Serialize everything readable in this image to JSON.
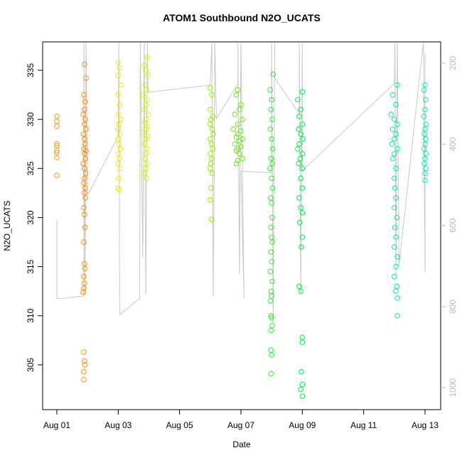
{
  "chart_data": {
    "type": "scatter",
    "title": "ATOM1 Southbound N2O_UCATS",
    "x_label": "Date",
    "y_label": "N2O_UCATS",
    "xlim": [
      0.537,
      13.51
    ],
    "xticks": [
      {
        "value": 1,
        "label": "Aug 01"
      },
      {
        "value": 3,
        "label": "Aug 03"
      },
      {
        "value": 5,
        "label": "Aug 05"
      },
      {
        "value": 7,
        "label": "Aug 07"
      },
      {
        "value": 9,
        "label": "Aug 09"
      },
      {
        "value": 11,
        "label": "Aug 11"
      },
      {
        "value": 13,
        "label": "Aug 13"
      }
    ],
    "ylim": [
      300.44,
      337.89
    ],
    "yticks": [
      305,
      310,
      315,
      320,
      325,
      330,
      335
    ],
    "y2lim": [
      1054,
      147.5
    ],
    "y2ticks": [
      200,
      400,
      600,
      800,
      1000
    ],
    "series": [
      {
        "type": "line",
        "axis": "y2",
        "color": "#c8c8c8",
        "x": [
          1.0,
          1.0,
          1.88,
          1.88,
          1.92,
          1.95,
          2.0,
          3.0,
          3.02,
          3.05,
          3.7,
          3.72,
          3.8,
          3.85,
          3.9,
          3.95,
          3.97,
          6.0,
          6.05,
          6.1,
          6.15,
          6.2,
          6.9,
          6.9,
          6.95,
          7.0,
          7.1,
          7.0,
          8.0,
          8.0,
          8.05,
          8.1,
          8.1,
          8.9,
          8.9,
          8.95,
          9.0,
          9.0,
          12.0,
          12.02,
          12.05,
          12.1,
          12.15,
          12.9,
          12.95,
          13.0,
          13.0
        ],
        "values": [
          587,
          781,
          774,
          150,
          770,
          150,
          526,
          380,
          150,
          820,
          780,
          150,
          680,
          150,
          770,
          150,
          272,
          254,
          150,
          775,
          150,
          337,
          251,
          150,
          720,
          150,
          780,
          466,
          470,
          150,
          840,
          150,
          237,
          324,
          150,
          770,
          150,
          465,
          250,
          150,
          720,
          150,
          700,
          180,
          150,
          715,
          175
        ]
      },
      {
        "type": "scatter",
        "color": "#f7941d",
        "x": [
          1.0,
          1.0,
          1.0,
          1.0,
          1.0,
          1.0,
          1.0,
          1.0,
          1.0
        ],
        "values": [
          330.3,
          329.8,
          329.3,
          327.5,
          327.3,
          326.8,
          326.6,
          326.1,
          324.3
        ]
      },
      {
        "type": "scatter",
        "color": "#ff8c00",
        "x": [
          1.9,
          1.95,
          1.88,
          1.92,
          1.9,
          1.86,
          1.93,
          1.9,
          1.95,
          1.87,
          1.9,
          1.92,
          1.88,
          1.95,
          1.9,
          1.93,
          1.86,
          1.9,
          1.94,
          1.9,
          1.88,
          1.92,
          1.9,
          1.93,
          1.88,
          1.9,
          1.92,
          1.88,
          1.9,
          1.92,
          1.88,
          1.9,
          1.88,
          1.86,
          1.88,
          1.9,
          1.92,
          1.88,
          1.88
        ],
        "values": [
          335.6,
          334.2,
          332.5,
          331.8,
          331,
          330.5,
          330,
          329.5,
          329,
          328.5,
          328,
          327.5,
          327,
          326.8,
          326.5,
          326,
          325.5,
          325,
          324.5,
          324,
          323.5,
          323,
          322.5,
          322,
          321,
          320.3,
          319,
          317.5,
          315.3,
          314.8,
          314,
          313.3,
          312.8,
          312.4,
          306.3,
          305.4,
          305,
          304.3,
          303.5
        ]
      },
      {
        "type": "scatter",
        "color": "#e8e800",
        "x": [
          3.0,
          3.05,
          3.0,
          3.1,
          3.0,
          3.05,
          3.0,
          3.08,
          3.02,
          3.0,
          3.05,
          3.0,
          3.02,
          3.07,
          3.0,
          3.04,
          3.0,
          3.05,
          3.02,
          3.0,
          3.04
        ],
        "values": [
          335.8,
          335.2,
          334.5,
          333.5,
          332.5,
          331.5,
          330.5,
          330,
          329.5,
          329,
          328.5,
          328,
          327.5,
          327,
          326.5,
          326,
          325.5,
          325,
          324,
          323,
          322.8
        ]
      },
      {
        "type": "scatter",
        "color": "#d4f500",
        "x": [
          3.95,
          3.85,
          3.9,
          3.97,
          3.88,
          3.93,
          3.82,
          3.95,
          3.9,
          3.85,
          3.98,
          3.92,
          3.87,
          3.95,
          3.9,
          3.83,
          3.97,
          3.9,
          3.86,
          3.94,
          3.9,
          3.88,
          3.95,
          3.9,
          3.85,
          3.92
        ],
        "values": [
          336.3,
          335.5,
          335,
          334.5,
          333.5,
          333,
          332.5,
          332,
          331.5,
          331,
          330.5,
          330,
          329.7,
          329.3,
          329,
          328.7,
          328.3,
          328,
          327.5,
          327,
          326.5,
          326,
          325.5,
          325,
          324.5,
          324
        ]
      },
      {
        "type": "scatter",
        "color": "#8cf000",
        "x": [
          6.0,
          6.05,
          6.0,
          6.08,
          6.02,
          6.0,
          6.06,
          6.1,
          6.0,
          6.04,
          6.08,
          6.0,
          6.05,
          6.02,
          6.0,
          6.06,
          6.02,
          6.0,
          6.04
        ],
        "values": [
          333.2,
          332.5,
          331,
          330.3,
          330,
          329.5,
          329,
          328.5,
          328,
          327.5,
          327,
          326.5,
          326,
          325.5,
          325,
          324.5,
          323,
          321.8,
          319.8
        ]
      },
      {
        "type": "scatter",
        "color": "#5fee00",
        "x": [
          6.9,
          6.85,
          7.0,
          6.95,
          6.8,
          7.05,
          6.9,
          6.75,
          7.0,
          6.9,
          6.85,
          7.05,
          6.95,
          6.8,
          7.0,
          6.9,
          6.85,
          6.95,
          7.05,
          6.9,
          6.85
        ],
        "values": [
          333,
          332.5,
          331.5,
          331,
          330.5,
          330,
          329.5,
          329,
          328.8,
          328.5,
          328.2,
          328,
          327.8,
          327.5,
          327.2,
          327,
          326.8,
          326.5,
          326,
          325.8,
          325.5
        ]
      },
      {
        "type": "scatter",
        "color": "#28ee28",
        "x": [
          8.05,
          7.95,
          8.0,
          7.98,
          8.02,
          7.96,
          8.0,
          8.04,
          7.98,
          8.02,
          7.95,
          8.0,
          8.03,
          7.97,
          8.0,
          8.02,
          7.98,
          8.0,
          8.02,
          7.98,
          8.0,
          7.96,
          8.02,
          7.98,
          8.0,
          7.96,
          7.98,
          8.0,
          8.02,
          7.98,
          7.98,
          8.0,
          7.98
        ],
        "values": [
          334.6,
          333,
          332,
          331,
          330,
          329,
          328,
          327,
          326,
          325.5,
          325,
          324,
          323,
          322,
          321.5,
          320,
          319,
          318,
          317.5,
          316.5,
          315.5,
          314.5,
          313.5,
          312.5,
          312,
          311.5,
          310,
          309.8,
          309,
          308.5,
          306.5,
          306,
          304.1
        ]
      },
      {
        "type": "scatter",
        "color": "#00e84a",
        "x": [
          9.0,
          8.85,
          8.95,
          8.9,
          9.0,
          8.88,
          8.95,
          9.02,
          8.9,
          8.85,
          9.0,
          8.93,
          8.88,
          9.0,
          8.95,
          9.0,
          8.9,
          8.95,
          9.0,
          8.92,
          9.0,
          8.97,
          8.9,
          8.95,
          9.0,
          9.0,
          8.97,
          9.0,
          8.95,
          9.0
        ],
        "values": [
          332.8,
          332,
          331,
          330.3,
          329.5,
          329,
          328.5,
          328,
          327.5,
          327,
          326.5,
          326,
          325.5,
          325,
          324,
          323,
          322,
          321,
          320.5,
          319.5,
          318,
          317,
          313,
          312.5,
          307.8,
          307.3,
          304.3,
          303,
          302.5,
          301.8
        ]
      },
      {
        "type": "scatter",
        "color": "#00eaa0",
        "x": [
          12.1,
          11.95,
          12.05,
          11.9,
          12.0,
          12.1,
          11.95,
          12.05,
          12.0,
          11.92,
          12.1,
          12.0,
          11.95,
          12.05,
          12.0,
          12.02,
          12.05,
          12.0,
          12.08,
          12.02,
          12.05,
          12.0,
          12.1,
          12.05,
          12.0,
          12.08,
          12.05,
          12.1,
          12.1
        ],
        "values": [
          333.5,
          332.5,
          331.5,
          330.5,
          330,
          329.5,
          329,
          328.5,
          328,
          327.5,
          327,
          326.5,
          326,
          325,
          324,
          323,
          322,
          321,
          320,
          319,
          318,
          317,
          316,
          315,
          314,
          313,
          312.5,
          311.8,
          310
        ]
      },
      {
        "type": "scatter",
        "color": "#00ecb0",
        "x": [
          13.0,
          12.97,
          13.02,
          13.0,
          12.96,
          13.03,
          13.0,
          12.98,
          13.02,
          13.0,
          12.97,
          13.03,
          13.0,
          12.98,
          13.02,
          13.0,
          13.0
        ],
        "values": [
          333.5,
          333,
          332,
          331,
          330.3,
          329.5,
          329,
          328.5,
          328,
          327.5,
          327,
          326.5,
          326,
          325.5,
          325,
          324.5,
          323.8
        ]
      }
    ]
  }
}
